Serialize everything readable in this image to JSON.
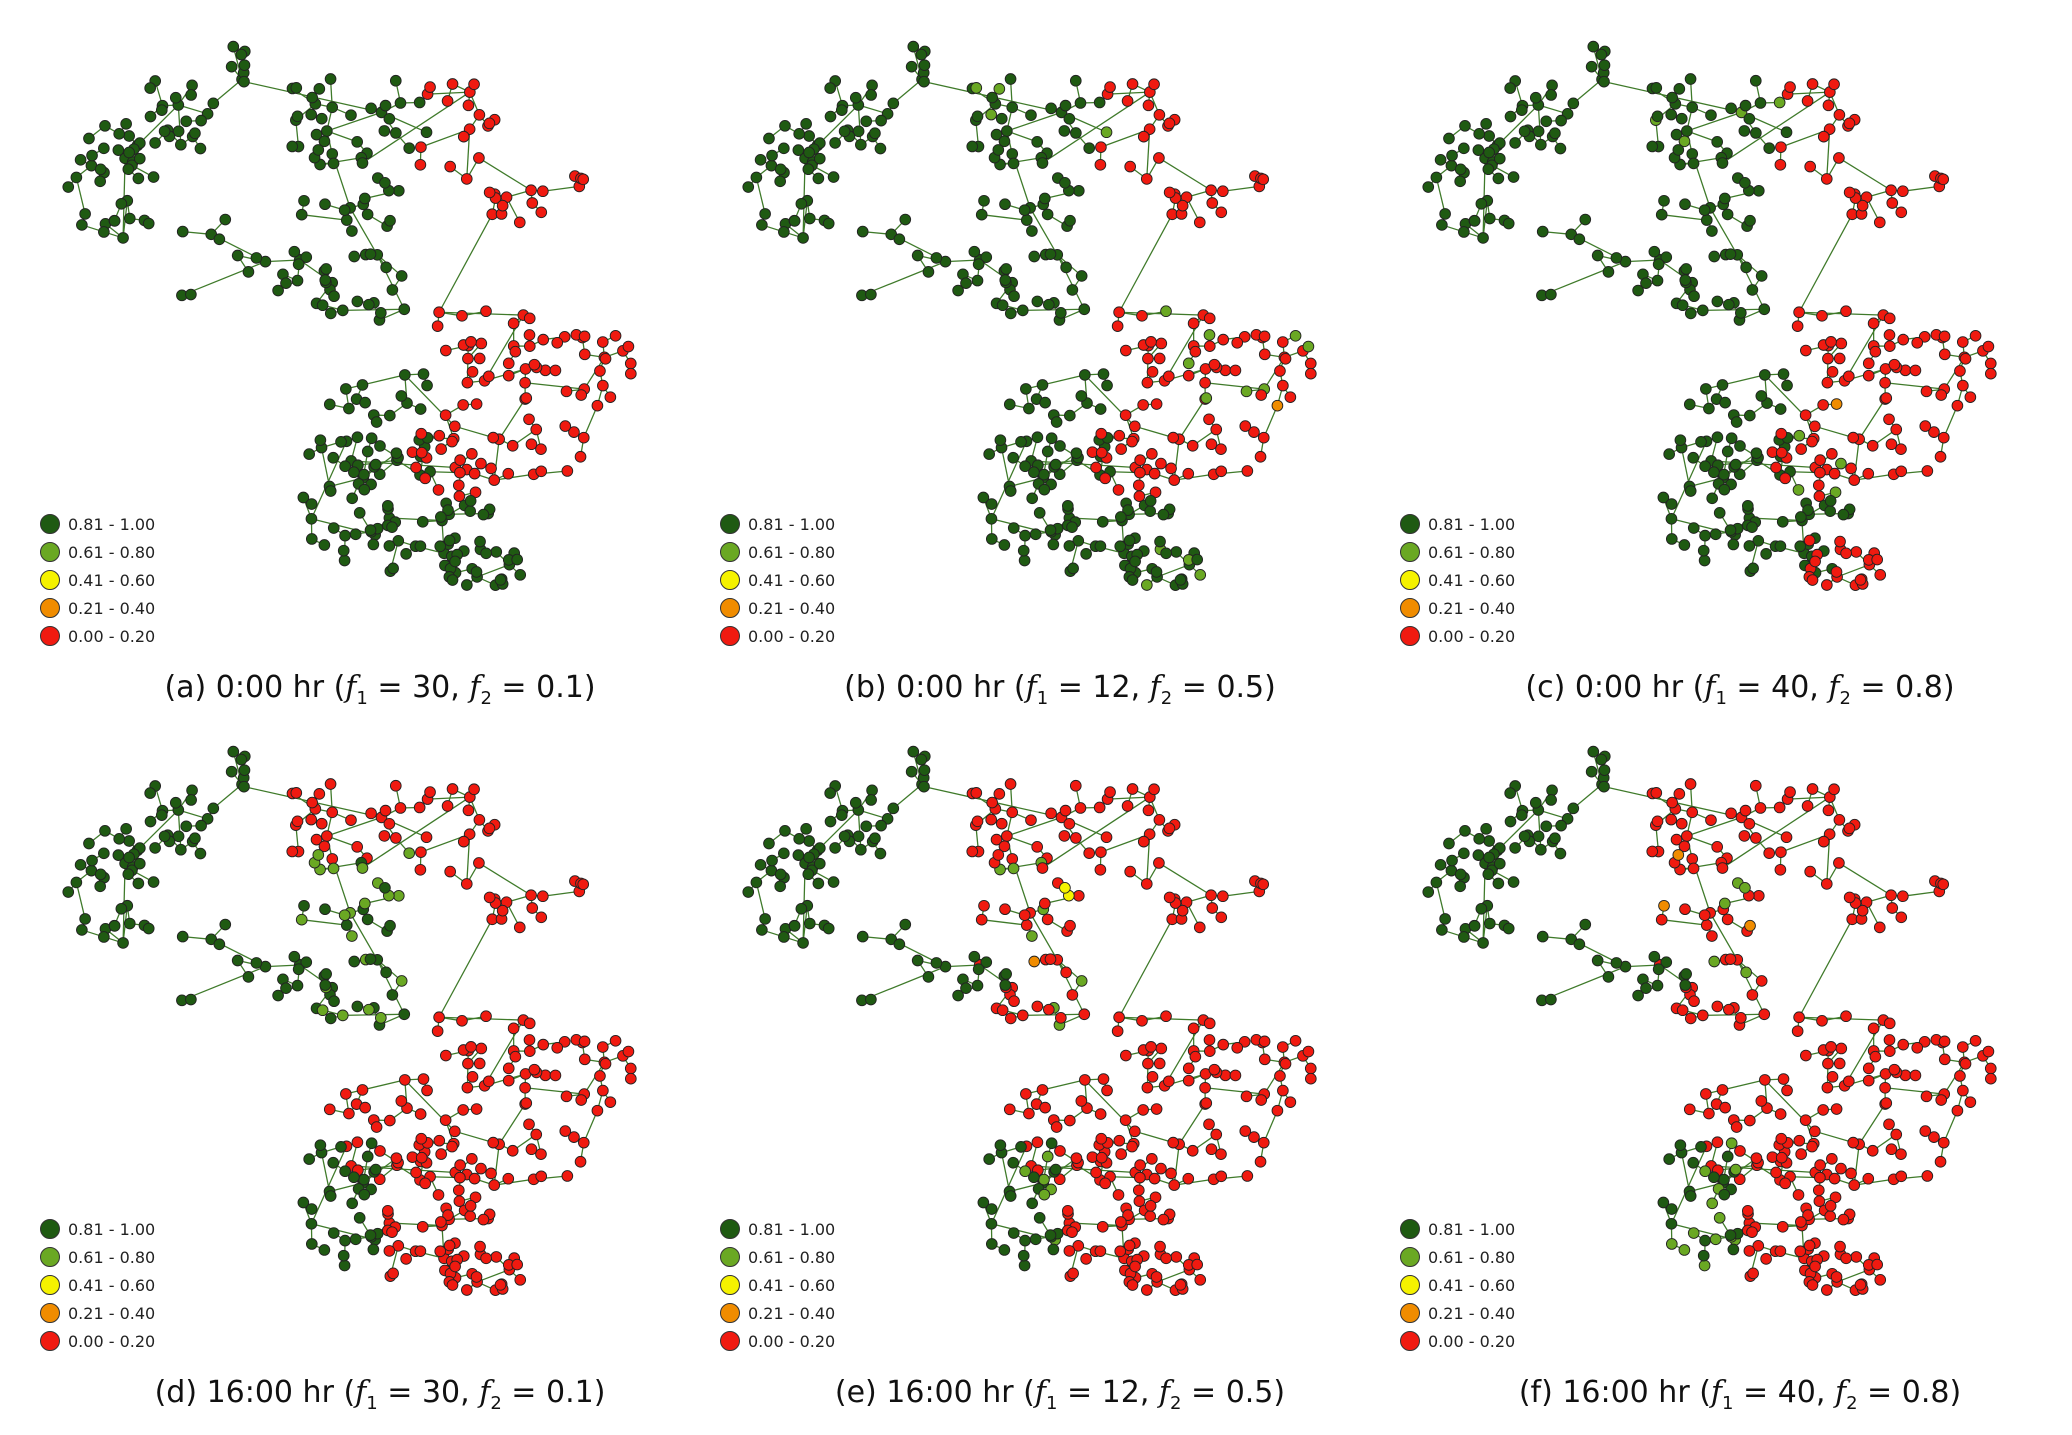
{
  "legend": [
    {
      "label": "0.81 - 1.00",
      "color": "#1f5a12"
    },
    {
      "label": "0.61 - 0.80",
      "color": "#6aa823"
    },
    {
      "label": "0.41 - 0.60",
      "color": "#f5f200"
    },
    {
      "label": "0.21 - 0.40",
      "color": "#f08c00"
    },
    {
      "label": "0.00 - 0.20",
      "color": "#f01a10"
    }
  ],
  "panels": [
    {
      "id": "a",
      "prefix": "(a) 0:00 hr (",
      "f1": "30",
      "f2": "0.1",
      "suffix": ")"
    },
    {
      "id": "b",
      "prefix": "(b) 0:00 hr (",
      "f1": "12",
      "f2": "0.5",
      "suffix": ")"
    },
    {
      "id": "c",
      "prefix": "(c) 0:00 hr (",
      "f1": "40",
      "f2": "0.8",
      "suffix": ")"
    },
    {
      "id": "d",
      "prefix": "(d) 16:00 hr (",
      "f1": "30",
      "f2": "0.1",
      "suffix": ")"
    },
    {
      "id": "e",
      "prefix": "(e) 16:00 hr (",
      "f1": "12",
      "f2": "0.5",
      "suffix": ")"
    },
    {
      "id": "f",
      "prefix": "(f) 16:00 hr (",
      "f1": "40",
      "f2": "0.8",
      "suffix": ")"
    }
  ],
  "caption_parts": {
    "f1_symbol": "f",
    "f1_sub": "1",
    "f2_symbol": "f",
    "f2_sub": "2",
    "equals": " = ",
    "comma": ", "
  }
}
